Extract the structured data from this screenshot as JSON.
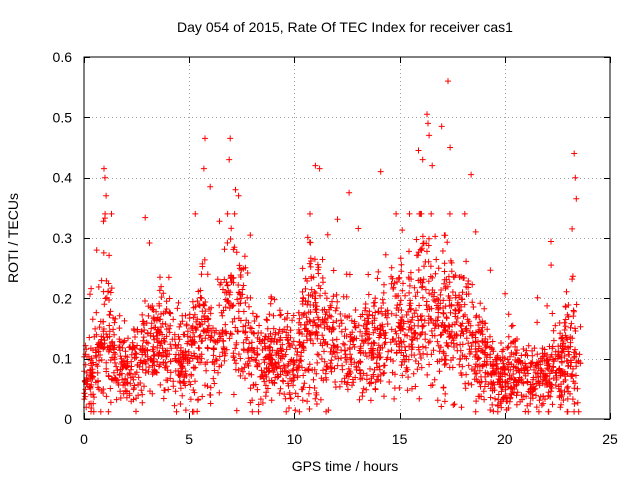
{
  "chart_data": {
    "type": "scatter",
    "title": "Day 054 of 2015, Rate Of TEC Index for receiver cas1",
    "xlabel": "GPS time / hours",
    "ylabel": "ROTI / TECUs",
    "xlim": [
      0,
      25
    ],
    "ylim": [
      0,
      0.6
    ],
    "x_ticks": [
      0,
      5,
      10,
      15,
      20,
      25
    ],
    "x_tick_labels": [
      "0",
      "5",
      "10",
      "15",
      "20",
      "25"
    ],
    "y_ticks": [
      0,
      0.1,
      0.2,
      0.3,
      0.4,
      0.5,
      0.6
    ],
    "y_tick_labels": [
      "0",
      "0.1",
      "0.2",
      "0.3",
      "0.4",
      "0.5",
      "0.6"
    ],
    "grid": true,
    "marker": "+",
    "marker_color": "#ff0000",
    "series": [
      {
        "name": "ROTI",
        "density_points": 6800,
        "data_range_x": [
          0,
          23.6
        ],
        "outliers": [
          {
            "x": 0.95,
            "y": 0.415
          },
          {
            "x": 1.0,
            "y": 0.4
          },
          {
            "x": 1.05,
            "y": 0.37
          },
          {
            "x": 5.75,
            "y": 0.465
          },
          {
            "x": 5.7,
            "y": 0.415
          },
          {
            "x": 6.0,
            "y": 0.385
          },
          {
            "x": 6.95,
            "y": 0.465
          },
          {
            "x": 6.9,
            "y": 0.43
          },
          {
            "x": 7.2,
            "y": 0.38
          },
          {
            "x": 7.35,
            "y": 0.37
          },
          {
            "x": 11.0,
            "y": 0.42
          },
          {
            "x": 11.2,
            "y": 0.415
          },
          {
            "x": 12.6,
            "y": 0.375
          },
          {
            "x": 14.1,
            "y": 0.41
          },
          {
            "x": 15.9,
            "y": 0.445
          },
          {
            "x": 16.1,
            "y": 0.43
          },
          {
            "x": 16.3,
            "y": 0.505
          },
          {
            "x": 16.35,
            "y": 0.49
          },
          {
            "x": 16.4,
            "y": 0.47
          },
          {
            "x": 16.55,
            "y": 0.42
          },
          {
            "x": 17.0,
            "y": 0.485
          },
          {
            "x": 17.3,
            "y": 0.56
          },
          {
            "x": 17.4,
            "y": 0.45
          },
          {
            "x": 18.4,
            "y": 0.405
          },
          {
            "x": 23.3,
            "y": 0.44
          },
          {
            "x": 23.35,
            "y": 0.4
          },
          {
            "x": 23.4,
            "y": 0.365
          },
          {
            "x": 23.2,
            "y": 0.315
          },
          {
            "x": 22.2,
            "y": 0.255
          }
        ]
      }
    ]
  }
}
